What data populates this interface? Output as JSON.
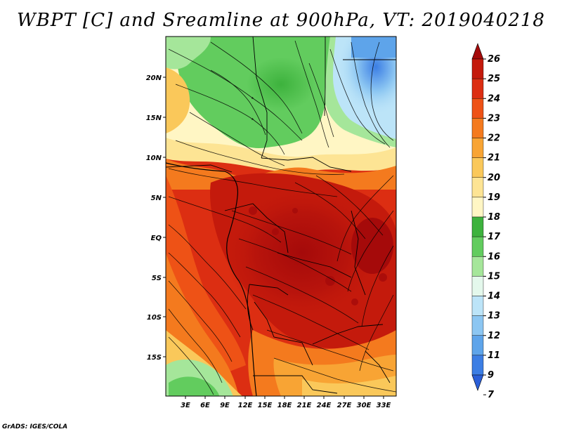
{
  "title": "WBPT [C] and Sreamline at 900hPa, VT: 2019040218",
  "footer": "GrADS: IGES/COLA",
  "map": {
    "latitude_labels": [
      "20N",
      "15N",
      "10N",
      "5N",
      "EQ",
      "5S",
      "10S",
      "15S"
    ],
    "longitude_labels": [
      "3E",
      "6E",
      "9E",
      "12E",
      "15E",
      "18E",
      "21E",
      "24E",
      "27E",
      "30E",
      "33E"
    ]
  },
  "colorbar": {
    "labels": [
      "26",
      "25",
      "24",
      "23",
      "22",
      "21",
      "20",
      "19",
      "18",
      "17",
      "16",
      "15",
      "14",
      "13",
      "12",
      "11",
      "9",
      "7"
    ],
    "colors": [
      "#a50a0a",
      "#c41a0c",
      "#dc2e12",
      "#ee5216",
      "#f47a1e",
      "#f8a434",
      "#fac85a",
      "#fde494",
      "#fff6c4",
      "#3db23d",
      "#62cc5e",
      "#a5e69a",
      "#e4f8ec",
      "#bce4f8",
      "#8cc6f2",
      "#5ea4ea",
      "#3c7ee4",
      "#2b5fd8"
    ]
  }
}
